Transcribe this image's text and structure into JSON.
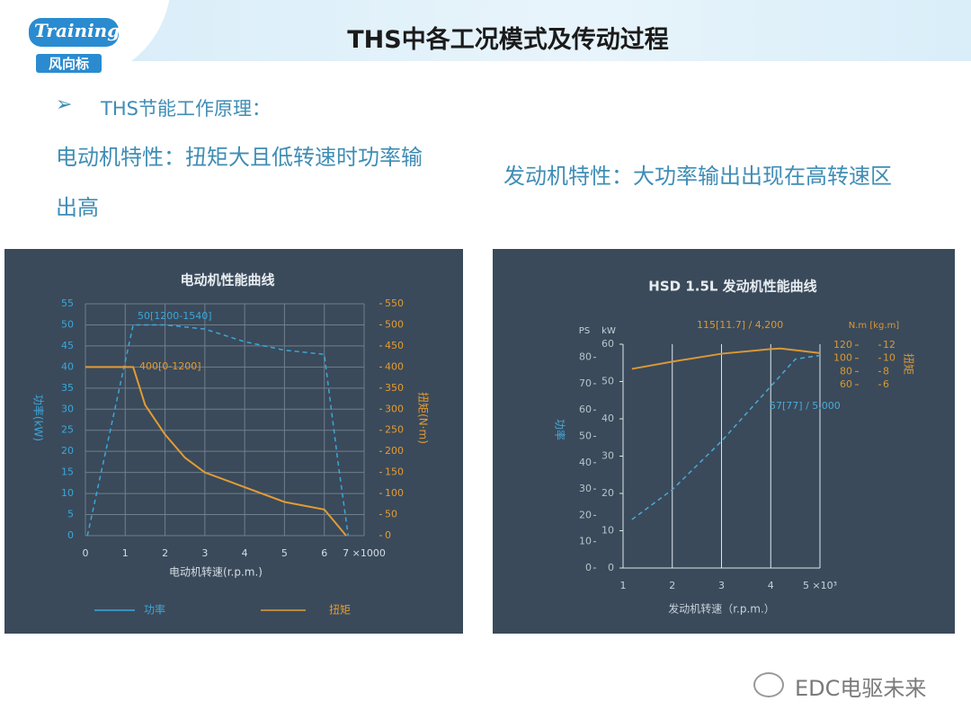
{
  "header": {
    "logo_top": "Training",
    "logo_bottom": "风向标",
    "title": "THS中各工况模式及传动过程"
  },
  "bullet": "THS节能工作原理：",
  "motor_text": "电动机特性：扭矩大且低转速时功率输出高",
  "engine_text": "发动机特性：大功率输出出现在高转速区",
  "watermark": "EDC电驱未来",
  "chart_data": [
    {
      "type": "line",
      "title": "电动机性能曲线",
      "x_label": "电动机转速(r.p.m.)",
      "y_label": "功率(kW)",
      "y2_label": "扭矩(N·m)",
      "xlim": [
        0,
        7
      ],
      "xticks": [
        0,
        1,
        2,
        3,
        4,
        5,
        6,
        {
          "value": 7,
          "label": "7 ×1000"
        }
      ],
      "ylim": [
        0,
        55
      ],
      "yticks": [
        0,
        5,
        10,
        15,
        20,
        25,
        30,
        35,
        40,
        45,
        50,
        55
      ],
      "y2lim": [
        0,
        550
      ],
      "y2ticks": [
        0,
        50,
        100,
        150,
        200,
        250,
        300,
        350,
        400,
        450,
        500,
        550
      ],
      "grid": true,
      "legend": "bottom",
      "series": [
        {
          "name": "功率",
          "color": "#3ba7db",
          "line_style": "dashed",
          "x": [
            0.05,
            1.2,
            2,
            3,
            4,
            5,
            6,
            6.35,
            6.6
          ],
          "values": [
            0,
            50,
            50,
            49,
            46,
            44,
            43,
            17,
            0
          ]
        },
        {
          "name": "扭矩",
          "color": "#e49b34",
          "line_style": "solid",
          "axis": "y2",
          "x": [
            0,
            1.2,
            1.5,
            2,
            2.5,
            3,
            4,
            5,
            6,
            6.55
          ],
          "values": [
            400,
            400,
            310,
            240,
            185,
            150,
            115,
            80,
            62,
            0
          ]
        }
      ],
      "annotations": [
        {
          "text": "50[1200-1540]"
        },
        {
          "text": "400[0-1200]"
        }
      ]
    },
    {
      "type": "line",
      "title": "HSD 1.5L 发动机性能曲线",
      "x_label": "发动机转速（r.p.m.）",
      "y_label": "功率",
      "y2_label": "扭矩",
      "y_unit": "kW",
      "y_alt_unit": "PS",
      "y2_unit": "N.m [kg.m]",
      "xlim": [
        1,
        5
      ],
      "xticks": [
        1,
        2,
        3,
        4,
        {
          "value": 5,
          "label": "5 ×10³"
        }
      ],
      "ylim": [
        0,
        60
      ],
      "yticks": [
        0,
        10,
        20,
        30,
        40,
        50,
        60
      ],
      "y_alt_lim": [
        0,
        85
      ],
      "y_alt_ticks": [
        0,
        10,
        20,
        30,
        40,
        50,
        60,
        70,
        80
      ],
      "y2lim": [
        -218,
        121.4
      ],
      "y2ticks": [
        60,
        80,
        100,
        120
      ],
      "y2_alt_lim": [
        -21.8,
        12.14
      ],
      "y2_alt_ticks": [
        6,
        8,
        10,
        12
      ],
      "grid": "x",
      "series": [
        {
          "color": "#4aa9d6",
          "line_style": "dashed",
          "x": [
            1.18,
            2,
            3,
            4,
            4.5,
            5
          ],
          "values": [
            13,
            21,
            34,
            48.7,
            56,
            57
          ]
        },
        {
          "color": "#d99836",
          "line_style": "solid",
          "axis": "y2",
          "x": [
            1.18,
            2,
            3,
            4,
            4.2,
            5
          ],
          "values": [
            84,
            95,
            107,
            114,
            115,
            108
          ]
        }
      ],
      "annotations": [
        {
          "text": "115[11.7] / 4,200"
        },
        {
          "text": "57[77] / 5,000"
        }
      ]
    }
  ]
}
